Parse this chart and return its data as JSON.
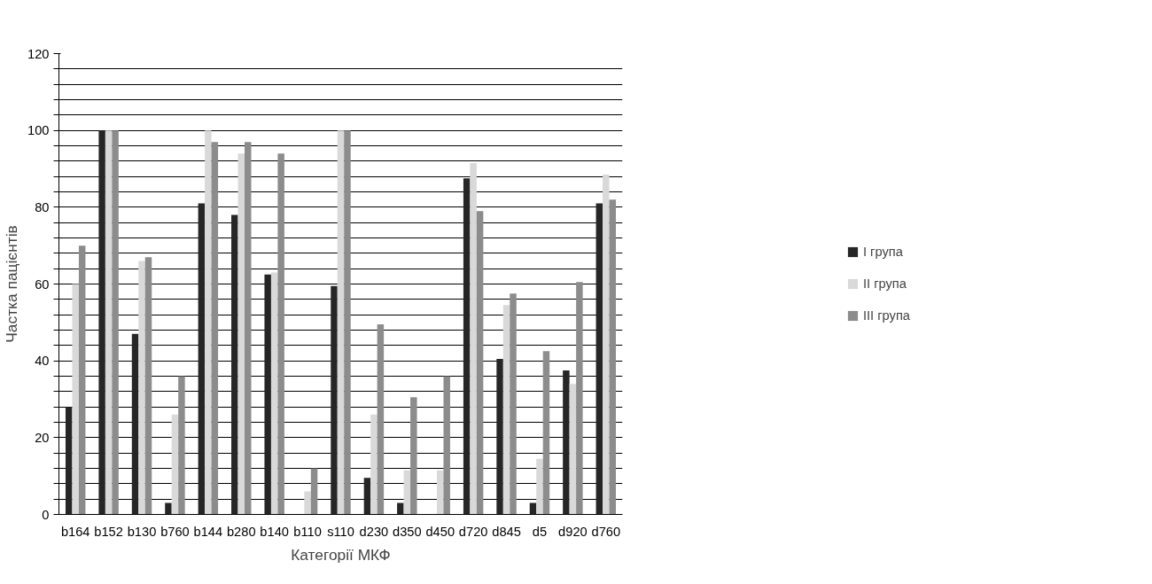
{
  "chart_data": {
    "type": "bar",
    "xlabel": "Категорії МКФ",
    "ylabel": "Частка пацієнтів",
    "categories": [
      "b164",
      "b152",
      "b130",
      "b760",
      "b144",
      "b280",
      "b140",
      "b110",
      "s110",
      "d230",
      "d350",
      "d450",
      "d720",
      "d845",
      "d5",
      "d920",
      "d760"
    ],
    "series": [
      {
        "name": "I група",
        "color": "#262626",
        "values": [
          28,
          100,
          47,
          3,
          81,
          78,
          62.5,
          0,
          59.5,
          9.5,
          3,
          0,
          87.5,
          40.5,
          3,
          37.5,
          81
        ]
      },
      {
        "name": "II група",
        "color": "#d9d9d9",
        "values": [
          60,
          100,
          66,
          26,
          100,
          94,
          63,
          6,
          100,
          26,
          11.5,
          11.5,
          91.5,
          54.5,
          14.5,
          34,
          88.5
        ]
      },
      {
        "name": "III група",
        "color": "#8c8c8c",
        "values": [
          70,
          100,
          67,
          36,
          97,
          97,
          94,
          12,
          100,
          49.5,
          30.5,
          36,
          79,
          57.5,
          42.5,
          60.5,
          82
        ]
      }
    ],
    "ylim": [
      0,
      120
    ],
    "yticks": [
      0,
      {
        "value": 4,
        "label": null
      },
      {
        "value": 8,
        "label": null
      },
      {
        "value": 12,
        "label": null
      },
      {
        "value": 16,
        "label": null
      },
      20,
      {
        "value": 24,
        "label": null
      },
      {
        "value": 28,
        "label": null
      },
      {
        "value": 32,
        "label": null
      },
      {
        "value": 36,
        "label": null
      },
      40,
      {
        "value": 44,
        "label": null
      },
      {
        "value": 48,
        "label": null
      },
      {
        "value": 52,
        "label": null
      },
      {
        "value": 56,
        "label": null
      },
      60,
      {
        "value": 64,
        "label": null
      },
      {
        "value": 68,
        "label": null
      },
      {
        "value": 72,
        "label": null
      },
      {
        "value": 76,
        "label": null
      },
      80,
      {
        "value": 84,
        "label": null
      },
      {
        "value": 88,
        "label": null
      },
      {
        "value": 92,
        "label": null
      },
      {
        "value": 96,
        "label": null
      },
      100,
      {
        "value": 104,
        "label": null
      },
      {
        "value": 108,
        "label": null
      },
      {
        "value": 112,
        "label": null
      },
      {
        "value": 116,
        "label": null
      },
      120
    ],
    "grid": "y",
    "legend": "right"
  }
}
